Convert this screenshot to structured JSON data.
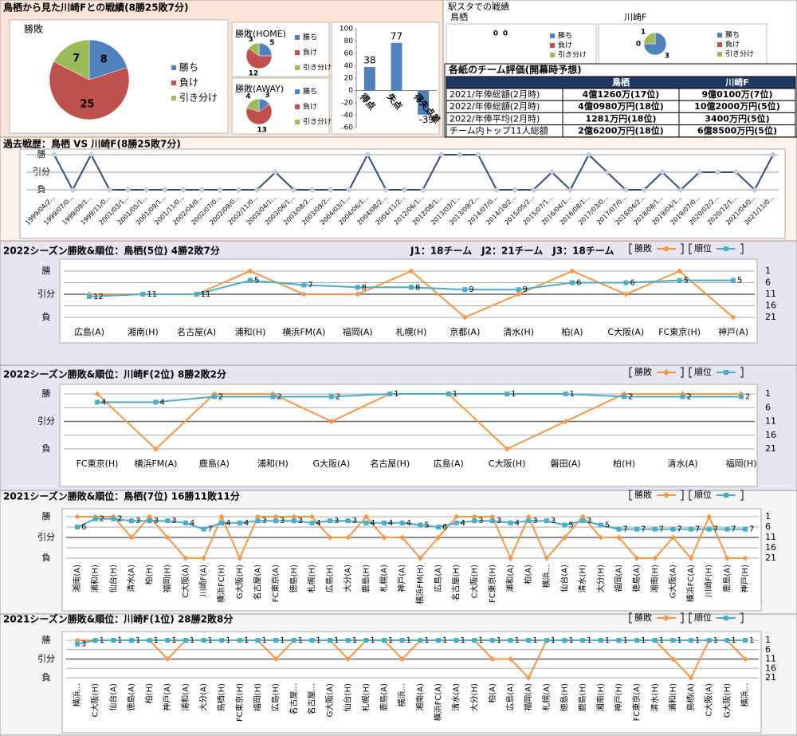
{
  "panels": {
    "summary": "鳥栖から見た川崎Fとの戦績(8勝25敗7分)",
    "stadium": "駅スタでの戦績"
  },
  "table": {
    "title": "各紙のチーム評価(開幕時予想)",
    "columns": [
      "鳥栖",
      "川崎F"
    ],
    "rows": [
      [
        "2021/年俸総額(2月時)",
        "4億1260万(17位)",
        "9億0100万(7位)"
      ],
      [
        "2022/年俸総額(2月時)",
        "4億0980万円(18位)",
        "10億2000万円(5位)"
      ],
      [
        "2022/年俸平均(2月時)",
        "1281万円(18位)",
        "3400万円(5位)"
      ],
      [
        "チーム内トップ11人総額",
        "2億6200万円(18位)",
        "6億8500万円(5位)"
      ]
    ]
  },
  "chart_data": [
    {
      "type": "pie",
      "title": "勝敗",
      "categories": [
        "勝ち",
        "負け",
        "引き分け"
      ],
      "values": [
        8,
        25,
        7
      ],
      "colors": [
        "#4f81bd",
        "#c0504d",
        "#9bbb59"
      ]
    },
    {
      "type": "pie",
      "title": "勝敗(HOME)",
      "categories": [
        "勝ち",
        "負け",
        "引き分け"
      ],
      "values": [
        5,
        12,
        3
      ],
      "colors": [
        "#4f81bd",
        "#c0504d",
        "#9bbb59"
      ]
    },
    {
      "type": "pie",
      "title": "勝敗(AWAY)",
      "categories": [
        "勝ち",
        "負け",
        "引き分け"
      ],
      "values": [
        3,
        13,
        4
      ],
      "colors": [
        "#4f81bd",
        "#c0504d",
        "#9bbb59"
      ]
    },
    {
      "type": "bar",
      "categories": [
        "得点",
        "失点",
        "得失点差"
      ],
      "values": [
        38,
        77,
        -39
      ],
      "color": "#4f81bd",
      "ylim": [
        -60,
        100
      ],
      "yticks": [
        -60,
        -40,
        -20,
        0,
        20,
        40,
        60,
        80,
        100
      ]
    },
    {
      "type": "pie",
      "title": "鳥栖",
      "categories": [
        "勝ち",
        "負け",
        "引き分け"
      ],
      "values": [
        0,
        0,
        null
      ],
      "colors": [
        "#4f81bd",
        "#c0504d",
        "#9bbb59"
      ]
    },
    {
      "type": "pie",
      "title": "川崎F",
      "categories": [
        "勝ち",
        "負け",
        "引き分け"
      ],
      "values": [
        3,
        0,
        1
      ],
      "colors": [
        "#4f81bd",
        "#c0504d",
        "#9bbb59"
      ]
    },
    {
      "type": "line",
      "title": "過去戦歴：鳥栖 VS 川崎F(8勝25敗7分)",
      "grid": true,
      "categories": [
        "1999/04/2…",
        "1999/07/0…",
        "1999/09/1…",
        "1999/11/0…",
        "2001/03/1…",
        "2001/05/1…",
        "2001/09/1…",
        "2001/11/0…",
        "2002/04/0…",
        "2002/07/0…",
        "2002/09/0…",
        "2002/11/0…",
        "2003/04/1…",
        "2003/06/1…",
        "2003/08/2…",
        "2003/09/2…",
        "2004/03/1…",
        "2004/06/1…",
        "2004/08/2…",
        "2004/11/2…",
        "2012/06/1…",
        "2012/08/1…",
        "2013/03/1…",
        "2013/09/2…",
        "2014/07/0…",
        "2014/10/2…",
        "2015/05/2…",
        "2015/07/1…",
        "2016/04/1…",
        "2016/08/1…",
        "2017/03/0…",
        "2017/07/0…",
        "2018/04/2…",
        "2018/08/1…",
        "2019/04/1…",
        "2019/07/0…",
        "2020/02/2…",
        "2020/12/1…",
        "2021/04/0…",
        "2021/11/0…"
      ],
      "ylim": [
        -1,
        1
      ],
      "yticks": [
        {
          "value": 1,
          "label": "勝"
        },
        {
          "value": 0,
          "label": "引分"
        },
        {
          "value": -1,
          "label": "負"
        }
      ],
      "series": [
        {
          "color": "#2f4f78",
          "values": [
            1,
            -1,
            1,
            -1,
            -1,
            -1,
            -1,
            -1,
            -1,
            -1,
            -1,
            -1,
            0,
            -1,
            -1,
            -1,
            -1,
            1,
            -1,
            -1,
            -1,
            1,
            1,
            1,
            -1,
            -1,
            -1,
            0,
            -1,
            1,
            0,
            -1,
            -1,
            0,
            -1,
            0,
            0,
            0,
            -1,
            1
          ]
        }
      ]
    },
    {
      "type": "line",
      "title": "2022シーズン勝敗&順位：鳥栖(5位) 4勝2敗7分",
      "annotation": "J1：18チーム　J2：21チーム　J3：18チーム",
      "grid": true,
      "categories": [
        "広島(A)",
        "湘南(H)",
        "名古屋(A)",
        "浦和(H)",
        "横浜FM(A)",
        "福岡(A)",
        "札幌(H)",
        "京都(A)",
        "清水(H)",
        "柏(A)",
        "C大阪(A)",
        "FC東京(H)",
        "神戸(A)"
      ],
      "ylim": [
        -1,
        1
      ],
      "yticks": [
        {
          "value": 1,
          "label": "勝"
        },
        {
          "value": 0,
          "label": "引分"
        },
        {
          "value": -1,
          "label": "負"
        }
      ],
      "y2lim": [
        21,
        1
      ],
      "y2ticks": [
        1,
        6,
        11,
        16,
        21
      ],
      "series": [
        {
          "name": "勝敗",
          "color": "#f79646",
          "values": [
            0,
            0,
            0,
            1,
            0,
            0,
            1,
            -1,
            0,
            1,
            0,
            1,
            -1
          ]
        },
        {
          "name": "順位",
          "color": "#4bacc6",
          "axis": "y2",
          "values": [
            12,
            11,
            11,
            5,
            7,
            8,
            8,
            9,
            9,
            6,
            6,
            5,
            5
          ]
        }
      ]
    },
    {
      "type": "line",
      "title": "2022シーズン勝敗&順位：川崎F(2位) 8勝2敗2分",
      "grid": true,
      "categories": [
        "FC東京(H)",
        "横浜FM(A)",
        "鹿島(A)",
        "浦和(H)",
        "G大阪(A)",
        "名古屋(H)",
        "広島(A)",
        "C大阪(H)",
        "磐田(A)",
        "柏(H)",
        "清水(A)",
        "福岡(H)"
      ],
      "ylim": [
        -1,
        1
      ],
      "yticks": [
        {
          "value": 1,
          "label": "勝"
        },
        {
          "value": 0,
          "label": "引分"
        },
        {
          "value": -1,
          "label": "負"
        }
      ],
      "y2lim": [
        21,
        1
      ],
      "y2ticks": [
        1,
        6,
        11,
        16,
        21
      ],
      "series": [
        {
          "name": "勝敗",
          "color": "#f79646",
          "values": [
            1,
            -1,
            1,
            1,
            0,
            1,
            1,
            -1,
            0,
            1,
            1,
            1
          ]
        },
        {
          "name": "順位",
          "color": "#4bacc6",
          "axis": "y2",
          "values": [
            4,
            4,
            2,
            2,
            2,
            1,
            1,
            1,
            1,
            2,
            2,
            2
          ]
        }
      ]
    },
    {
      "type": "line",
      "title": "2021シーズン勝敗&順位：鳥栖(7位) 16勝11敗11分",
      "grid": true,
      "categories": [
        "湘南(A)",
        "浦和(H)",
        "仙台(H)",
        "清水(A)",
        "柏(H)",
        "福岡(H)",
        "C大阪(A)",
        "川崎F(A)",
        "横浜FC(H)",
        "G大阪(H)",
        "名古屋(A)",
        "FC東京(A)",
        "徳島(H)",
        "札幌(H)",
        "広島(H)",
        "大分(A)",
        "鹿島(H)",
        "札幌(A)",
        "神戸(A)",
        "横浜FM(H)",
        "広島(A)",
        "名古屋(H)",
        "C大阪(H)",
        "FC東京(H)",
        "浦和(A)",
        "柏(A)",
        "横浜...",
        "仙台(A)",
        "清水(H)",
        "大分(H)",
        "福岡(A)",
        "徳島(A)",
        "湘南(H)",
        "G大阪(A)",
        "横浜FC(A)",
        "川崎F(H)",
        "鹿島(A)",
        "神戸(H)"
      ],
      "ylim": [
        -1,
        1
      ],
      "yticks": [
        {
          "value": 1,
          "label": "勝"
        },
        {
          "value": 0,
          "label": "引分"
        },
        {
          "value": -1,
          "label": "負"
        }
      ],
      "y2lim": [
        21,
        1
      ],
      "y2ticks": [
        1,
        6,
        11,
        16,
        21
      ],
      "series": [
        {
          "name": "勝敗",
          "color": "#f79646",
          "values": [
            1,
            1,
            1,
            0,
            1,
            0,
            -1,
            -1,
            1,
            -1,
            1,
            1,
            1,
            1,
            0,
            0,
            1,
            0,
            0,
            -1,
            0,
            1,
            1,
            1,
            -1,
            1,
            -1,
            0,
            1,
            0,
            0,
            -1,
            -1,
            0,
            -1,
            1,
            -1,
            -1
          ]
        },
        {
          "name": "順位",
          "color": "#4bacc6",
          "axis": "y2",
          "values": [
            6,
            2,
            2,
            3,
            3,
            3,
            4,
            7,
            4,
            4,
            3,
            3,
            3,
            4,
            3,
            3,
            4,
            4,
            4,
            5,
            6,
            4,
            3,
            3,
            4,
            3,
            3,
            5,
            3,
            5,
            7,
            7,
            7,
            7,
            7,
            7,
            7,
            7
          ]
        }
      ]
    },
    {
      "type": "line",
      "title": "2021シーズン勝敗&順位：川崎F(1位) 28勝2敗8分",
      "grid": true,
      "categories": [
        "横浜...",
        "C大阪(H)",
        "仙台(A)",
        "徳島(A)",
        "柏(H)",
        "神戸(A)",
        "浦和(A)",
        "大分(A)",
        "鳥栖(H)",
        "FC東京(H)",
        "福岡(H)",
        "広島(H)",
        "名古屋...",
        "名古屋...",
        "G大阪(A)",
        "仙台(H)",
        "札幌(H)",
        "鹿島(A)",
        "横浜...",
        "湘南(A)",
        "横浜FC(A)",
        "清水(A)",
        "大分(H)",
        "柏(A)",
        "広島(A)",
        "福岡(A)",
        "札幌(A)",
        "徳島(H)",
        "鹿島(H)",
        "湘南(H)",
        "神戸(H)",
        "FC東京(A)",
        "清水(H)",
        "浦和(H)",
        "鳥栖(A)",
        "C大阪(A)",
        "G大阪(H)",
        "横浜..."
      ],
      "ylim": [
        -1,
        1
      ],
      "yticks": [
        {
          "value": 1,
          "label": "勝"
        },
        {
          "value": 0,
          "label": "引分"
        },
        {
          "value": -1,
          "label": "負"
        }
      ],
      "y2lim": [
        21,
        1
      ],
      "y2ticks": [
        1,
        6,
        11,
        16,
        21
      ],
      "series": [
        {
          "name": "勝敗",
          "color": "#f79646",
          "values": [
            1,
            1,
            1,
            1,
            1,
            0,
            1,
            1,
            1,
            1,
            1,
            0,
            1,
            1,
            1,
            0,
            1,
            1,
            0,
            1,
            1,
            1,
            1,
            0,
            0,
            -1,
            1,
            1,
            1,
            1,
            1,
            1,
            1,
            0,
            -1,
            1,
            1,
            0
          ]
        },
        {
          "name": "順位",
          "color": "#4bacc6",
          "axis": "y2",
          "values": [
            3,
            1,
            1,
            1,
            1,
            1,
            1,
            1,
            1,
            1,
            1,
            1,
            1,
            1,
            1,
            1,
            1,
            1,
            1,
            1,
            1,
            1,
            1,
            1,
            1,
            1,
            1,
            1,
            1,
            1,
            1,
            1,
            1,
            1,
            1,
            1,
            1,
            1
          ]
        }
      ]
    }
  ]
}
